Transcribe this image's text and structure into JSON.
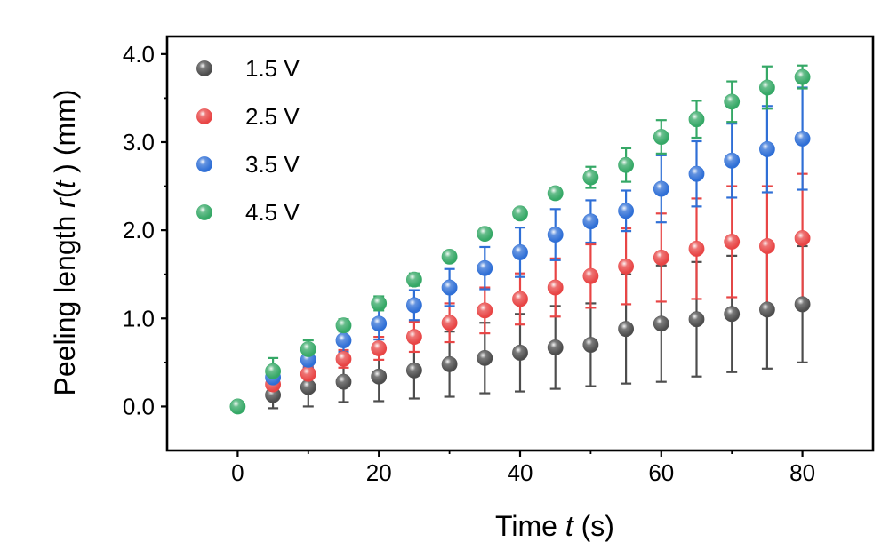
{
  "chart_data": {
    "type": "scatter",
    "xlabel": {
      "prefix": "Time ",
      "var": "t",
      "suffix": " (s)"
    },
    "ylabel": {
      "prefix": "Peeling length ",
      "var": "r",
      "mid": "(",
      "var2": "t",
      "suffix": " ) (mm)"
    },
    "xlim": [
      -10,
      90
    ],
    "ylim": [
      -0.5,
      4.2
    ],
    "xticks": [
      0,
      20,
      40,
      60,
      80
    ],
    "xtick_labels": [
      "0",
      "20",
      "40",
      "60",
      "80"
    ],
    "yticks": [
      0,
      1,
      2,
      3,
      4
    ],
    "ytick_labels": [
      "0.0",
      "1.0",
      "2.0",
      "3.0",
      "4.0"
    ],
    "legend_position": "top-left",
    "grid": false,
    "series": [
      {
        "name": "1.5 V",
        "color": "#4d4d4d",
        "x": [
          5,
          10,
          15,
          20,
          25,
          30,
          35,
          40,
          45,
          50,
          55,
          60,
          65,
          70,
          75,
          80
        ],
        "y": [
          0.13,
          0.22,
          0.28,
          0.34,
          0.41,
          0.48,
          0.55,
          0.61,
          0.67,
          0.7,
          0.88,
          0.94,
          0.99,
          1.05,
          1.1,
          1.16
        ],
        "err": [
          0.15,
          0.22,
          0.23,
          0.28,
          0.32,
          0.37,
          0.4,
          0.44,
          0.47,
          0.47,
          0.62,
          0.66,
          0.65,
          0.66,
          0.67,
          0.66
        ]
      },
      {
        "name": "2.5 V",
        "color": "#e84545",
        "x": [
          5,
          10,
          15,
          20,
          25,
          30,
          35,
          40,
          45,
          50,
          55,
          60,
          65,
          70,
          75,
          80
        ],
        "y": [
          0.25,
          0.37,
          0.54,
          0.66,
          0.79,
          0.95,
          1.09,
          1.22,
          1.35,
          1.48,
          1.59,
          1.69,
          1.79,
          1.87,
          1.82,
          1.91
        ],
        "err": [
          0.07,
          0.09,
          0.1,
          0.13,
          0.17,
          0.22,
          0.26,
          0.29,
          0.33,
          0.36,
          0.43,
          0.5,
          0.57,
          0.63,
          0.68,
          0.73
        ]
      },
      {
        "name": "3.5 V",
        "color": "#2f6fd6",
        "x": [
          5,
          10,
          15,
          20,
          25,
          30,
          35,
          40,
          45,
          50,
          55,
          60,
          65,
          70,
          75,
          80
        ],
        "y": [
          0.33,
          0.53,
          0.75,
          0.94,
          1.15,
          1.35,
          1.57,
          1.75,
          1.95,
          2.1,
          2.22,
          2.47,
          2.64,
          2.79,
          2.92,
          3.04
        ],
        "err": [
          0.07,
          0.09,
          0.13,
          0.18,
          0.17,
          0.21,
          0.24,
          0.28,
          0.29,
          0.24,
          0.23,
          0.38,
          0.37,
          0.42,
          0.49,
          0.58
        ]
      },
      {
        "name": "4.5 V",
        "color": "#35a866",
        "x": [
          0,
          5,
          10,
          15,
          20,
          25,
          30,
          35,
          40,
          45,
          50,
          55,
          60,
          65,
          70,
          75,
          80
        ],
        "y": [
          0.0,
          0.4,
          0.65,
          0.92,
          1.17,
          1.44,
          1.7,
          1.96,
          2.19,
          2.42,
          2.6,
          2.74,
          3.06,
          3.26,
          3.46,
          3.62,
          3.74
        ],
        "err": [
          0,
          0.15,
          0.1,
          0.07,
          0.08,
          0.07,
          0.05,
          0.04,
          0.05,
          0.06,
          0.12,
          0.19,
          0.19,
          0.21,
          0.23,
          0.24,
          0.13
        ]
      }
    ]
  }
}
